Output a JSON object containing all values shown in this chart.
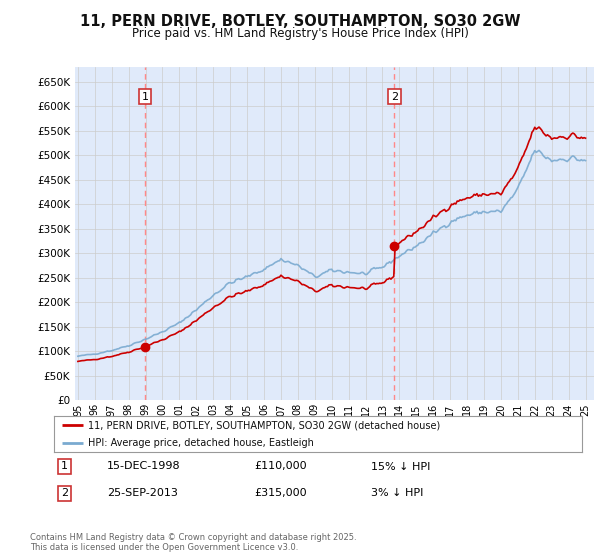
{
  "title": "11, PERN DRIVE, BOTLEY, SOUTHAMPTON, SO30 2GW",
  "subtitle": "Price paid vs. HM Land Registry's House Price Index (HPI)",
  "background_color": "#FFFFFF",
  "plot_bg_color": "#E0EAFA",
  "grid_color": "#CCCCCC",
  "ylim": [
    0,
    680000
  ],
  "yticks": [
    0,
    50000,
    100000,
    150000,
    200000,
    250000,
    300000,
    350000,
    400000,
    450000,
    500000,
    550000,
    600000,
    650000
  ],
  "ytick_labels": [
    "£0",
    "£50K",
    "£100K",
    "£150K",
    "£200K",
    "£250K",
    "£300K",
    "£350K",
    "£400K",
    "£450K",
    "£500K",
    "£550K",
    "£600K",
    "£650K"
  ],
  "sale1_date_num": 1998.958,
  "sale1_price": 110000,
  "sale1_label": "1",
  "sale2_date_num": 2013.708,
  "sale2_price": 315000,
  "sale2_label": "2",
  "legend_line1": "11, PERN DRIVE, BOTLEY, SOUTHAMPTON, SO30 2GW (detached house)",
  "legend_line2": "HPI: Average price, detached house, Eastleigh",
  "footer1": "Contains HM Land Registry data © Crown copyright and database right 2025.",
  "footer2": "This data is licensed under the Open Government Licence v3.0.",
  "table_row1": [
    "1",
    "15-DEC-1998",
    "£110,000",
    "15% ↓ HPI"
  ],
  "table_row2": [
    "2",
    "25-SEP-2013",
    "£315,000",
    "3% ↓ HPI"
  ],
  "line_red": "#CC0000",
  "line_blue": "#7AAAD0",
  "dashed_color": "#FF8888",
  "xlim": [
    1994.83,
    2025.5
  ]
}
